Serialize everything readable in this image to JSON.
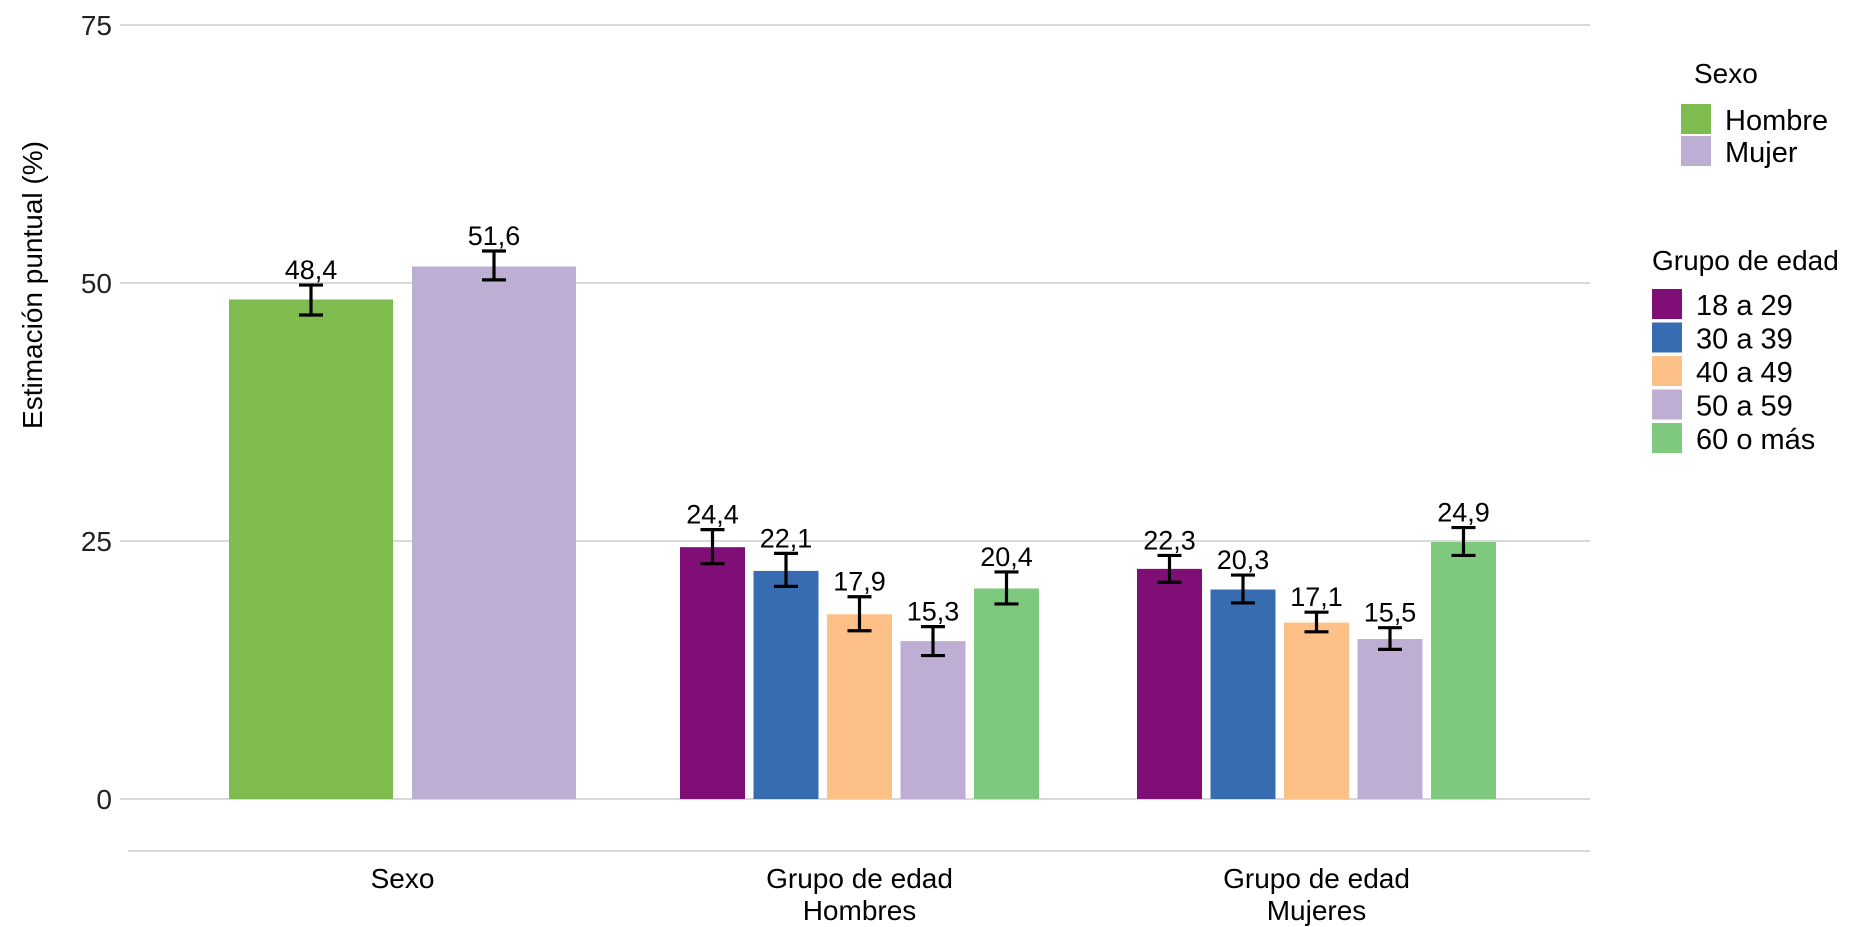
{
  "chart_data": {
    "type": "bar",
    "ylabel": "Estimación puntual (%)",
    "ylim": [
      -5,
      75
    ],
    "yticks": [
      0,
      25,
      50,
      75
    ],
    "grid": true,
    "legend_placement": "right",
    "groups": [
      {
        "label_lines": [
          "Sexo"
        ],
        "bars": [
          {
            "series": "Hombre",
            "value": 48.4,
            "label": "48,4",
            "err_low": 46.9,
            "err_high": 49.8
          },
          {
            "series": "Mujer",
            "value": 51.6,
            "label": "51,6",
            "err_low": 50.3,
            "err_high": 53.1
          }
        ]
      },
      {
        "label_lines": [
          "Grupo de edad",
          "Hombres"
        ],
        "bars": [
          {
            "series": "18 a 29",
            "value": 24.4,
            "label": "24,4",
            "err_low": 22.8,
            "err_high": 26.1
          },
          {
            "series": "30 a 39",
            "value": 22.1,
            "label": "22,1",
            "err_low": 20.6,
            "err_high": 23.8
          },
          {
            "series": "40 a 49",
            "value": 17.9,
            "label": "17,9",
            "err_low": 16.3,
            "err_high": 19.6
          },
          {
            "series": "50 a 59",
            "value": 15.3,
            "label": "15,3",
            "err_low": 13.9,
            "err_high": 16.7
          },
          {
            "series": "60 o más",
            "value": 20.4,
            "label": "20,4",
            "err_low": 18.9,
            "err_high": 22.0
          }
        ]
      },
      {
        "label_lines": [
          "Grupo de edad",
          "Mujeres"
        ],
        "bars": [
          {
            "series": "18 a 29",
            "value": 22.3,
            "label": "22,3",
            "err_low": 21.0,
            "err_high": 23.6
          },
          {
            "series": "30 a 39",
            "value": 20.3,
            "label": "20,3",
            "err_low": 19.0,
            "err_high": 21.7
          },
          {
            "series": "40 a 49",
            "value": 17.1,
            "label": "17,1",
            "err_low": 16.2,
            "err_high": 18.1
          },
          {
            "series": "50 a 59",
            "value": 15.5,
            "label": "15,5",
            "err_low": 14.5,
            "err_high": 16.6
          },
          {
            "series": "60 o más",
            "value": 24.9,
            "label": "24,9",
            "err_low": 23.6,
            "err_high": 26.3
          }
        ]
      }
    ],
    "legends": [
      {
        "title": "Sexo",
        "items": [
          {
            "label": "Hombre",
            "color": "#7fbc4f"
          },
          {
            "label": "Mujer",
            "color": "#bdaed3"
          }
        ]
      },
      {
        "title": "Grupo de edad",
        "items": [
          {
            "label": "18 a 29",
            "color": "#7f0e77"
          },
          {
            "label": "30 a 39",
            "color": "#386cb0"
          },
          {
            "label": "40 a 49",
            "color": "#fdc086"
          },
          {
            "label": "50 a 59",
            "color": "#beaed4"
          },
          {
            "label": "60 o más",
            "color": "#7fc97f"
          }
        ]
      }
    ]
  }
}
